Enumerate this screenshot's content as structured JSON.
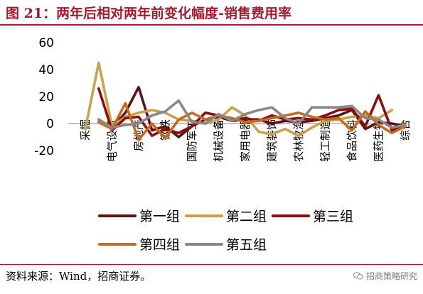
{
  "title": "图 21：两年后相对两年前变化幅度-销售费用率",
  "source": "资料来源：Wind，招商证券。",
  "watermark": "招商策略研究",
  "chart_data": {
    "type": "line",
    "title": "",
    "xlabel": "",
    "ylabel": "",
    "ylim": [
      -20,
      60
    ],
    "yticks": [
      -20,
      0,
      20,
      40,
      60
    ],
    "grid": false,
    "legend_position": "bottom",
    "x_tick_labels": [
      "采掘",
      "电气设备",
      "房地产",
      "钢铁",
      "国防军工",
      "机械设备",
      "家用电器",
      "建筑装饰",
      "农林牧渔",
      "轻工制造",
      "食品饮料",
      "医药生物",
      "综合"
    ],
    "x_tick_positions": [
      0,
      2,
      4,
      6,
      8,
      10,
      12,
      14,
      16,
      18,
      20,
      22,
      24
    ],
    "x_count": 25,
    "series": [
      {
        "name": "第一组",
        "color": "#5a1414",
        "values": [
          null,
          3,
          -3,
          8,
          27,
          -5,
          -2,
          -10,
          -2,
          3,
          5,
          2,
          3,
          3,
          0,
          2,
          1,
          2,
          4,
          6,
          10,
          -4,
          1,
          0,
          -2
        ]
      },
      {
        "name": "第二组",
        "color": "#c9a24b",
        "values": [
          -4,
          45,
          -2,
          5,
          8,
          10,
          8,
          3,
          2,
          0,
          3,
          12,
          6,
          -6,
          -8,
          -4,
          -9,
          -3,
          2,
          3,
          5,
          6,
          4,
          10,
          null
        ]
      },
      {
        "name": "第三组",
        "color": "#8b0f0f",
        "values": [
          null,
          26,
          -5,
          4,
          5,
          -9,
          -4,
          -7,
          -2,
          8,
          6,
          3,
          4,
          2,
          6,
          3,
          4,
          3,
          6,
          10,
          11,
          -2,
          21,
          -5,
          -2
        ]
      },
      {
        "name": "第四组",
        "color": "#c76a1e",
        "values": [
          null,
          1,
          -4,
          15,
          -12,
          0,
          -11,
          3,
          8,
          3,
          6,
          4,
          1,
          2,
          4,
          6,
          8,
          5,
          3,
          4,
          -5,
          9,
          -1,
          -7,
          -2
        ]
      },
      {
        "name": "第五组",
        "color": "#888888",
        "values": [
          null,
          3,
          -3,
          -1,
          0,
          6,
          9,
          17,
          1,
          0,
          7,
          2,
          7,
          10,
          12,
          4,
          0,
          12,
          12,
          12,
          13,
          4,
          3,
          -3,
          -1
        ]
      }
    ]
  }
}
